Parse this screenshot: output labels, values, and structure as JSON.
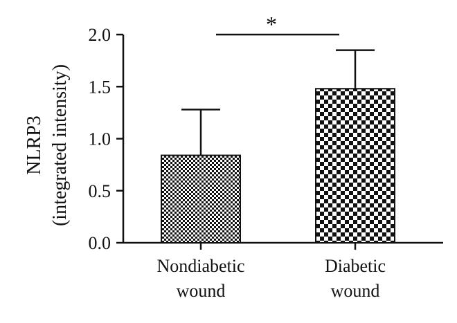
{
  "chart_data": {
    "type": "bar",
    "categories": [
      "Nondiabetic\nwound",
      "Diabetic\nwound"
    ],
    "values": [
      0.84,
      1.48
    ],
    "error_upper": [
      1.28,
      1.85
    ],
    "ylabel_lines": [
      "NLRP3",
      "(integrated intensity)"
    ],
    "ylim": [
      0,
      2.0
    ],
    "yticks": [
      "0.0",
      "0.5",
      "1.0",
      "1.5",
      "2.0"
    ],
    "ytick_values": [
      0,
      0.5,
      1.0,
      1.5,
      2.0
    ],
    "significance": {
      "label": "*",
      "between": [
        0,
        1
      ],
      "y": 2.0
    },
    "grid": false,
    "legend": "none",
    "patterns": [
      "fine-checker",
      "coarse-checker"
    ],
    "colors": {
      "axis": "#111111",
      "pattern_dark": "#111111",
      "pattern_light": "#ffffff"
    }
  }
}
